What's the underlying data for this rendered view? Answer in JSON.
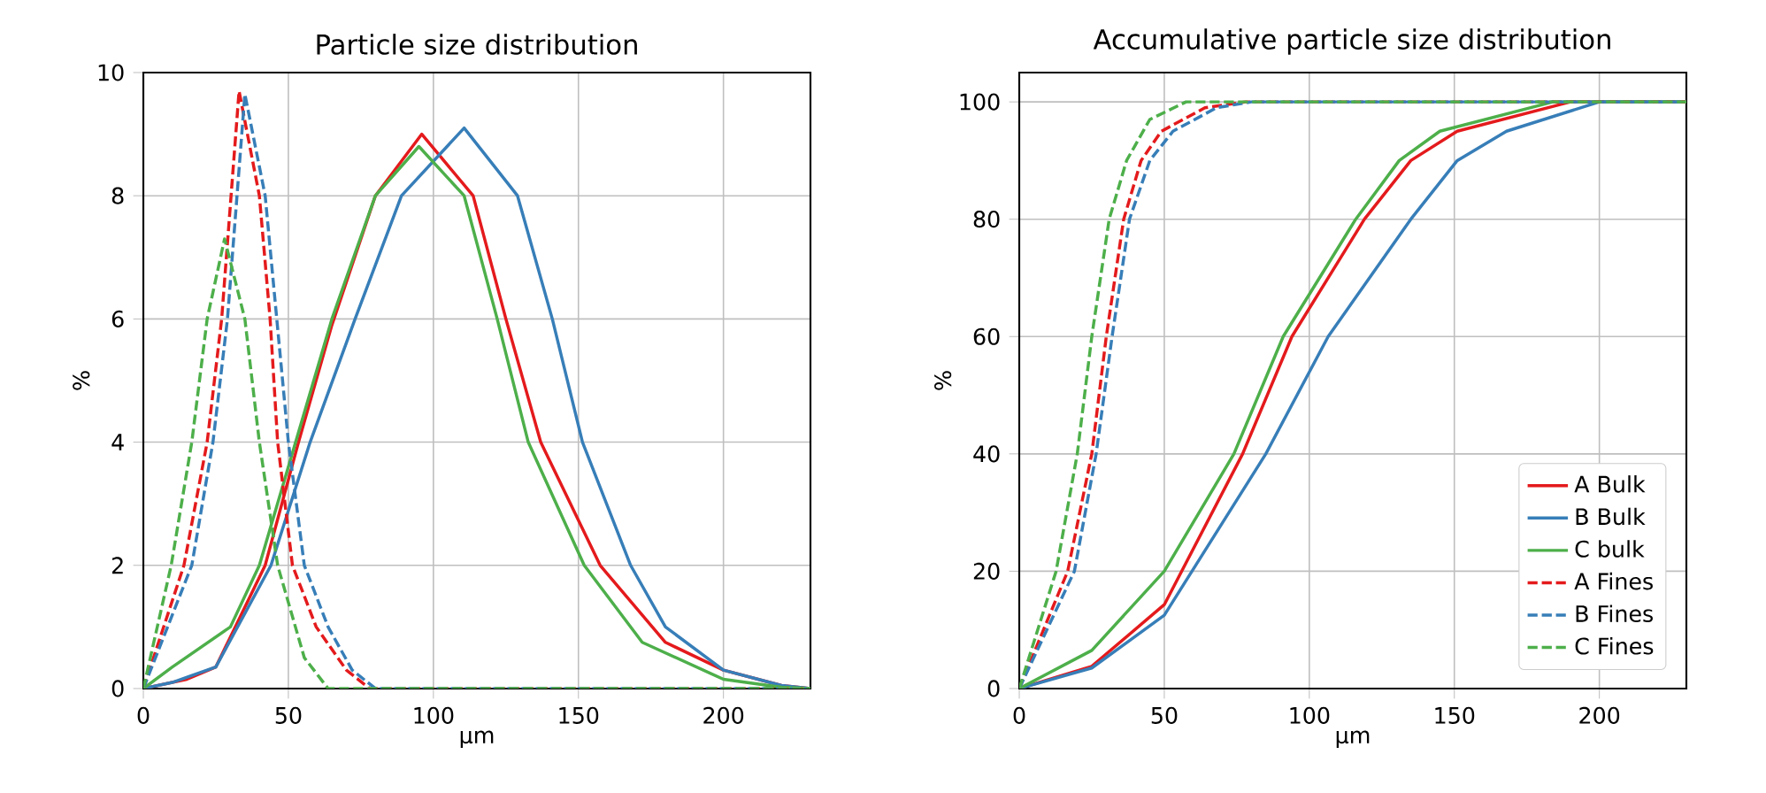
{
  "chart_data": [
    {
      "type": "line",
      "title": "Particle size distribution",
      "xlabel": "µm",
      "ylabel": "%",
      "xlim": [
        0,
        230
      ],
      "ylim": [
        0,
        10
      ],
      "xticks": [
        0,
        50,
        100,
        150,
        200
      ],
      "yticks": [
        0,
        2,
        4,
        6,
        8,
        10
      ],
      "grid": true,
      "series": [
        {
          "color": "#e41a1c",
          "line_style": "solid",
          "x": [
            0,
            15,
            25,
            42,
            53.5,
            65,
            80,
            96,
            113.7,
            125,
            137,
            157.5,
            180,
            200,
            220,
            230
          ],
          "values": [
            0,
            0.15,
            0.35,
            2,
            4,
            5.9,
            8,
            9.0,
            8,
            6,
            4,
            2,
            0.75,
            0.3,
            0.05,
            0
          ]
        },
        {
          "color": "#377eb8",
          "line_style": "solid",
          "x": [
            0,
            10,
            25,
            44,
            57.5,
            73,
            89,
            110.6,
            129,
            141,
            151.4,
            168,
            180,
            200,
            220,
            230
          ],
          "values": [
            0,
            0.1,
            0.35,
            2,
            4,
            6,
            8,
            9.1,
            8,
            6,
            4,
            2,
            1,
            0.3,
            0.05,
            0
          ]
        },
        {
          "color": "#4daf4a",
          "line_style": "solid",
          "x": [
            0,
            10,
            30,
            40,
            52.5,
            65,
            80,
            95,
            110.6,
            122,
            132.7,
            152,
            172,
            200,
            220,
            230
          ],
          "values": [
            0,
            0.35,
            1,
            2,
            4,
            6,
            8,
            8.8,
            8,
            6,
            4,
            2,
            0.75,
            0.15,
            0.02,
            0
          ]
        },
        {
          "color": "#e41a1c",
          "line_style": "dashed",
          "x": [
            0,
            14,
            22,
            27,
            33,
            40,
            43.7,
            46.3,
            51.4,
            59.6,
            70,
            78,
            230
          ],
          "values": [
            0,
            2,
            4,
            6,
            9.7,
            8,
            6,
            4,
            2,
            1,
            0.3,
            0,
            0
          ]
        },
        {
          "color": "#377eb8",
          "line_style": "dashed",
          "x": [
            0,
            16.7,
            24,
            29,
            35,
            42,
            46,
            50,
            55.5,
            63.7,
            72,
            80,
            230
          ],
          "values": [
            0,
            2,
            4,
            6,
            9.65,
            8,
            6,
            4,
            2,
            1,
            0.3,
            0,
            0
          ]
        },
        {
          "color": "#4daf4a",
          "line_style": "dashed",
          "x": [
            0,
            9.6,
            16.7,
            22,
            28,
            35,
            40,
            46.3,
            55.5,
            63.7,
            230
          ],
          "values": [
            0,
            2,
            4,
            6,
            7.3,
            6,
            4,
            2,
            0.5,
            0,
            0
          ]
        }
      ]
    },
    {
      "type": "line",
      "title": "Accumulative particle size distribution",
      "xlabel": "µm",
      "ylabel": "%",
      "xlim": [
        0,
        230
      ],
      "ylim": [
        0,
        105
      ],
      "xticks": [
        0,
        50,
        100,
        150,
        200
      ],
      "yticks": [
        0,
        20,
        40,
        60,
        80,
        100
      ],
      "grid": true,
      "legend": "bottom right",
      "series": [
        {
          "name": "A Bulk",
          "color": "#e41a1c",
          "line_style": "solid",
          "x": [
            0,
            25,
            50,
            77,
            94,
            119,
            135,
            151,
            190,
            230
          ],
          "values": [
            0,
            3.8,
            14.3,
            40,
            60,
            80,
            90,
            95,
            100,
            100
          ]
        },
        {
          "name": "B Bulk",
          "color": "#377eb8",
          "line_style": "solid",
          "x": [
            0,
            25,
            50,
            85,
            106.5,
            135,
            151,
            168,
            200,
            230
          ],
          "values": [
            0,
            3.5,
            12.5,
            40,
            60,
            80,
            90,
            95,
            100,
            100
          ]
        },
        {
          "name": "C bulk",
          "color": "#4daf4a",
          "line_style": "solid",
          "x": [
            0,
            25,
            50,
            74,
            91,
            116,
            131,
            145,
            184,
            230
          ],
          "values": [
            0,
            6.5,
            20,
            40,
            60,
            80,
            90,
            95,
            100,
            100
          ]
        },
        {
          "name": "A Fines",
          "color": "#e41a1c",
          "line_style": "dashed",
          "x": [
            0,
            16.7,
            25,
            30,
            36,
            42,
            49,
            64,
            78,
            230
          ],
          "values": [
            0,
            20,
            40,
            60,
            80,
            90,
            95,
            99,
            100,
            100
          ]
        },
        {
          "name": "B Fines",
          "color": "#377eb8",
          "line_style": "dashed",
          "x": [
            0,
            19,
            26.5,
            32,
            38,
            45,
            53,
            68,
            80,
            230
          ],
          "values": [
            0,
            20,
            40,
            60,
            80,
            90,
            95,
            99,
            100,
            100
          ]
        },
        {
          "name": "C Fines",
          "color": "#4daf4a",
          "line_style": "dashed",
          "x": [
            0,
            12.7,
            20,
            25,
            31,
            37,
            45,
            57.5,
            230
          ],
          "values": [
            0,
            20,
            40,
            60,
            80,
            90,
            97,
            100,
            100
          ]
        }
      ]
    }
  ]
}
